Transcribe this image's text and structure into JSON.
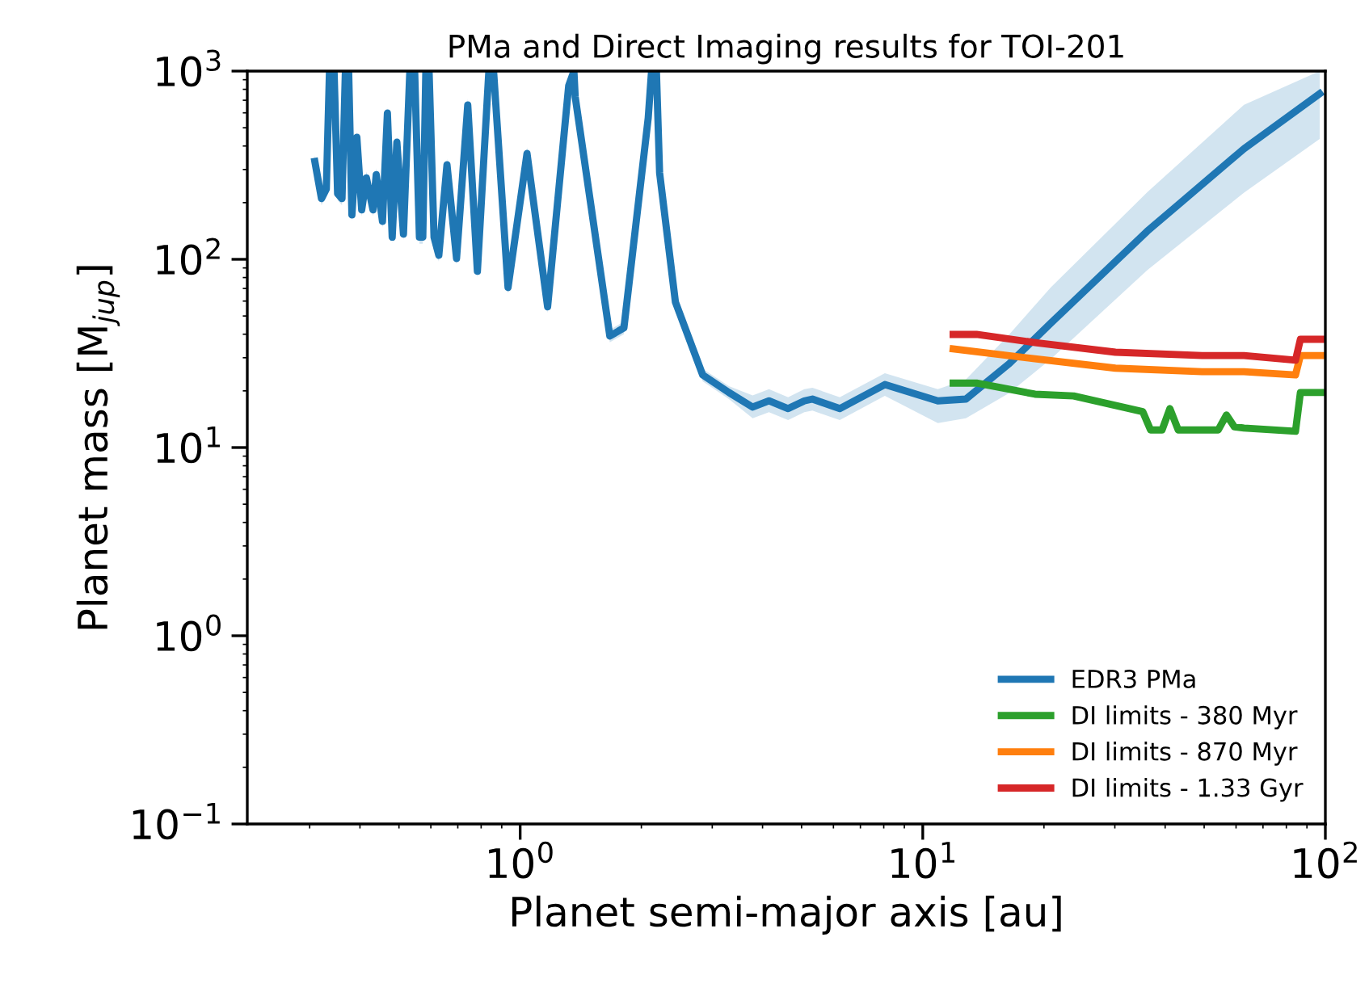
{
  "chart_data": {
    "type": "line",
    "title": "PMa and Direct Imaging results for TOI-201",
    "xlabel": "Planet semi-major axis [au]",
    "ylabel": "Planet mass [M$_{jup}$]",
    "log": "xy",
    "grid": false,
    "legend": "bottom right",
    "line_style": "solid",
    "marker": "none",
    "xlim": [
      0.21,
      100
    ],
    "ylim": [
      0.1,
      1000
    ],
    "xticks": [
      {
        "value": 1,
        "label": "10$^{0}$"
      },
      {
        "value": 10,
        "label": "10$^{1}$"
      },
      {
        "value": 100,
        "label": "10$^{2}$"
      }
    ],
    "yticks": [
      {
        "value": 0.1,
        "label": "10$^{−1}$"
      },
      {
        "value": 1,
        "label": "10$^{0}$"
      },
      {
        "value": 10,
        "label": "10$^{1}$"
      },
      {
        "value": 100,
        "label": "10$^{2}$"
      },
      {
        "value": 1000,
        "label": "10$^{3}$"
      }
    ],
    "series": [
      {
        "name": "EDR3 PMa",
        "color": "#1f77b4",
        "x": [
          0.309,
          0.321,
          0.33,
          0.336,
          0.345,
          0.352,
          0.361,
          0.368,
          0.375,
          0.382,
          0.393,
          0.404,
          0.415,
          0.431,
          0.439,
          0.455,
          0.468,
          0.481,
          0.494,
          0.513,
          0.532,
          0.547,
          0.562,
          0.573,
          0.583,
          0.594,
          0.611,
          0.628,
          0.658,
          0.695,
          0.741,
          0.783,
          0.836,
          0.859,
          0.933,
          1.04,
          1.17,
          1.32,
          1.36,
          1.37,
          1.67,
          1.81,
          2.08,
          2.12,
          2.18,
          2.22,
          2.43,
          2.84,
          3.3,
          3.78,
          4.15,
          4.63,
          5.08,
          5.32,
          6.22,
          8.05,
          10.9,
          12.8,
          16.4,
          20.8,
          36.1,
          62.8,
          96.8
        ],
        "values": [
          331,
          210,
          236,
          1000,
          1000,
          223,
          210,
          1000,
          1000,
          172,
          445,
          183,
          271,
          183,
          282,
          159,
          598,
          131,
          419,
          136,
          1000,
          1000,
          131,
          131,
          1000,
          1000,
          131,
          105,
          318,
          101,
          661,
          86.3,
          1000,
          1000,
          70.8,
          365,
          55.9,
          837,
          1000,
          730,
          39.1,
          43.2,
          564,
          1000,
          1000,
          288,
          59.3,
          24.3,
          19.6,
          16.4,
          17.7,
          16.1,
          17.7,
          18.1,
          16.1,
          21.6,
          17.7,
          18.1,
          27.9,
          45.8,
          141,
          387,
          759
        ],
        "lower": [
          306,
          194,
          219,
          926,
          926,
          206,
          194,
          926,
          926,
          159,
          412,
          169,
          251,
          169,
          261,
          147,
          554,
          121,
          388,
          126,
          926,
          926,
          121,
          121,
          926,
          926,
          121,
          97,
          294,
          94,
          612,
          79.9,
          926,
          926,
          65.6,
          338,
          51.8,
          775,
          926,
          676,
          36.2,
          40.0,
          522,
          926,
          926,
          267,
          54.9,
          22.5,
          18.1,
          14.3,
          15.4,
          14.0,
          15.4,
          15.7,
          14.0,
          18.8,
          13.5,
          14.3,
          19.5,
          29.5,
          87.6,
          226,
          436
        ],
        "upper": [
          357,
          227,
          255,
          1000,
          1000,
          241,
          227,
          1000,
          1000,
          186,
          481,
          198,
          293,
          198,
          305,
          172,
          646,
          141,
          453,
          147,
          1000,
          1000,
          141,
          141,
          1000,
          1000,
          141,
          113,
          343,
          109,
          714,
          93.2,
          1000,
          1000,
          76.5,
          394,
          60.4,
          904,
          1000,
          788,
          42.2,
          46.7,
          609,
          1000,
          1000,
          311,
          64.0,
          26.2,
          21.2,
          18.9,
          20.4,
          18.5,
          20.4,
          20.8,
          18.5,
          24.8,
          20.4,
          23.0,
          39.9,
          71.0,
          227,
          662,
          1000
        ]
      },
      {
        "name": "DI limits - 380 Myr",
        "color": "#2ca02c",
        "x": [
          11.9,
          13.6,
          19.0,
          23.7,
          35.2,
          36.8,
          39.3,
          41.1,
          43.1,
          54.2,
          56.8,
          59.4,
          62.8,
          84.3,
          86.7,
          100
        ],
        "values": [
          22.0,
          22.0,
          19.2,
          18.8,
          15.5,
          12.4,
          12.4,
          16.1,
          12.4,
          12.4,
          14.9,
          12.9,
          12.7,
          12.2,
          19.6,
          19.6
        ]
      },
      {
        "name": "DI limits - 870 Myr",
        "color": "#ff7f0e",
        "x": [
          11.9,
          19.0,
          30.1,
          49.4,
          62.8,
          84.3,
          86.7,
          100
        ],
        "values": [
          33.4,
          29.6,
          26.4,
          25.3,
          25.3,
          24.3,
          30.8,
          30.8
        ]
      },
      {
        "name": "DI limits - 1.33 Gyr",
        "color": "#d62728",
        "x": [
          11.9,
          13.6,
          19.0,
          30.1,
          49.4,
          62.8,
          84.3,
          86.7,
          100
        ],
        "values": [
          39.9,
          39.9,
          36.1,
          32.1,
          30.8,
          30.8,
          29.1,
          37.6,
          37.6
        ]
      }
    ]
  }
}
